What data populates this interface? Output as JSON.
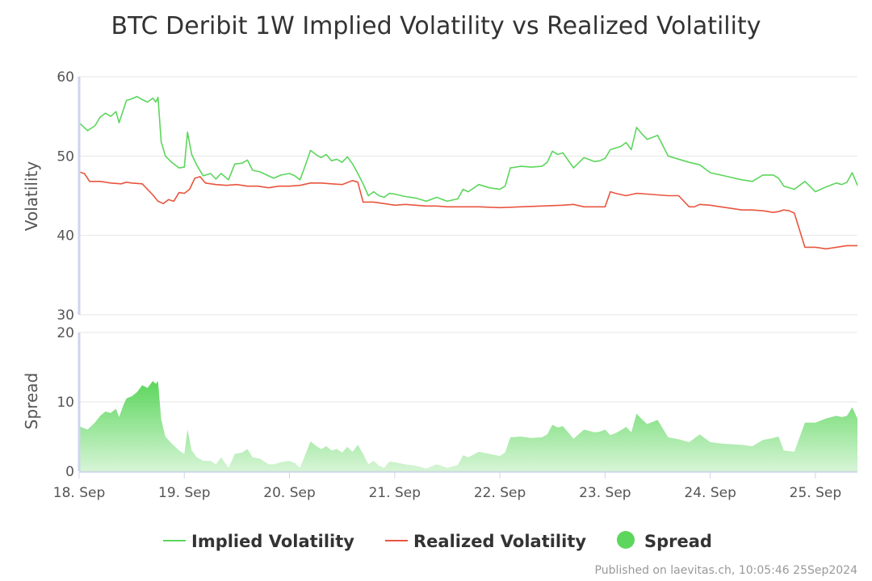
{
  "chart_data": {
    "type": "line",
    "title": "BTC Deribit 1W Implied Volatility vs Realized Volatility",
    "x_unit": "days since 18. Sep",
    "x_ticks": [
      "18. Sep",
      "19. Sep",
      "20. Sep",
      "21. Sep",
      "22. Sep",
      "23. Sep",
      "24. Sep",
      "25. Sep"
    ],
    "x_range": [
      0,
      7.4
    ],
    "panels": [
      {
        "id": "volatility",
        "ylabel": "Volatility",
        "ylim": [
          30,
          60
        ],
        "yticks": [
          30,
          40,
          50,
          60
        ]
      },
      {
        "id": "spread",
        "ylabel": "Spread",
        "ylim": [
          0,
          20
        ],
        "yticks": [
          0,
          10,
          20
        ]
      }
    ],
    "series": [
      {
        "name": "Implied Volatility",
        "panel": "volatility",
        "color": "#5cd65c",
        "x": [
          0,
          0.08,
          0.15,
          0.2,
          0.25,
          0.3,
          0.35,
          0.38,
          0.42,
          0.45,
          0.5,
          0.55,
          0.6,
          0.65,
          0.7,
          0.73,
          0.75,
          0.78,
          0.82,
          0.88,
          0.95,
          1.0,
          1.03,
          1.07,
          1.12,
          1.18,
          1.25,
          1.3,
          1.35,
          1.42,
          1.48,
          1.55,
          1.6,
          1.65,
          1.72,
          1.8,
          1.85,
          1.92,
          2.0,
          2.05,
          2.1,
          2.15,
          2.2,
          2.25,
          2.3,
          2.35,
          2.4,
          2.45,
          2.5,
          2.55,
          2.6,
          2.65,
          2.7,
          2.75,
          2.8,
          2.85,
          2.9,
          2.95,
          3.0,
          3.1,
          3.2,
          3.3,
          3.4,
          3.5,
          3.6,
          3.65,
          3.7,
          3.8,
          3.9,
          4.0,
          4.05,
          4.1,
          4.2,
          4.3,
          4.4,
          4.45,
          4.5,
          4.55,
          4.6,
          4.7,
          4.8,
          4.9,
          4.95,
          5.0,
          5.05,
          5.1,
          5.15,
          5.2,
          5.25,
          5.3,
          5.35,
          5.4,
          5.5,
          5.6,
          5.7,
          5.8,
          5.9,
          6.0,
          6.1,
          6.2,
          6.3,
          6.4,
          6.5,
          6.6,
          6.65,
          6.7,
          6.8,
          6.9,
          7.0,
          7.1,
          7.2,
          7.25,
          7.3,
          7.35,
          7.4
        ],
        "values": [
          54.2,
          53.2,
          53.8,
          54.9,
          55.4,
          55.0,
          55.6,
          54.2,
          55.8,
          57.0,
          57.2,
          57.5,
          57.1,
          56.8,
          57.3,
          56.8,
          57.4,
          51.8,
          50.0,
          49.2,
          48.5,
          48.6,
          53.0,
          50.2,
          48.8,
          47.5,
          47.8,
          47.1,
          47.8,
          47.0,
          49.0,
          49.1,
          49.5,
          48.2,
          48.0,
          47.5,
          47.2,
          47.6,
          47.8,
          47.5,
          47.0,
          48.8,
          50.7,
          50.2,
          49.8,
          50.2,
          49.4,
          49.6,
          49.2,
          49.9,
          49.0,
          47.8,
          46.5,
          45.0,
          45.5,
          45.0,
          44.8,
          45.3,
          45.2,
          44.9,
          44.7,
          44.3,
          44.8,
          44.3,
          44.6,
          45.8,
          45.5,
          46.4,
          46.0,
          45.8,
          46.2,
          48.5,
          48.7,
          48.6,
          48.7,
          49.2,
          50.6,
          50.2,
          50.4,
          48.5,
          49.8,
          49.3,
          49.4,
          49.7,
          50.8,
          51.0,
          51.2,
          51.7,
          50.8,
          53.6,
          52.8,
          52.1,
          52.6,
          50.0,
          49.6,
          49.2,
          48.9,
          47.9,
          47.6,
          47.3,
          47.0,
          46.8,
          47.6,
          47.6,
          47.2,
          46.2,
          45.8,
          46.8,
          45.5,
          46.1,
          46.6,
          46.4,
          46.7,
          47.9,
          46.3
        ],
        "spread_values": [
          6.5,
          6.0,
          7.0,
          8.0,
          8.6,
          8.4,
          9.0,
          7.8,
          9.5,
          10.5,
          10.8,
          11.4,
          12.4,
          12.0,
          13.0,
          12.6,
          13.0,
          7.5,
          5.0,
          4.0,
          3.0,
          2.5,
          6.0,
          3.0,
          2.0,
          1.5,
          1.5,
          1.0,
          2.0,
          0.5,
          2.5,
          2.7,
          3.2,
          2.0,
          1.8,
          1.0,
          1.0,
          1.3,
          1.5,
          1.2,
          0.5,
          2.4,
          4.3,
          3.7,
          3.2,
          3.6,
          3.0,
          3.2,
          2.7,
          3.5,
          2.8,
          3.8,
          2.5,
          1.0,
          1.5,
          0.8,
          0.5,
          1.4,
          1.3,
          1.0,
          0.8,
          0.4,
          1.0,
          0.5,
          0.9,
          2.3,
          2.0,
          2.8,
          2.5,
          2.2,
          2.7,
          4.9,
          5.0,
          4.8,
          4.9,
          5.3,
          6.7,
          6.3,
          6.5,
          4.7,
          6.0,
          5.6,
          5.7,
          6.0,
          5.2,
          5.5,
          5.9,
          6.4,
          5.6,
          8.3,
          7.5,
          6.8,
          7.4,
          4.9,
          4.6,
          4.2,
          5.3,
          4.2,
          4.0,
          3.9,
          3.8,
          3.6,
          4.5,
          4.8,
          5.0,
          3.0,
          2.8,
          7.0,
          7.0,
          7.6,
          8.0,
          7.8,
          8.0,
          9.2,
          7.6
        ],
        "spread_color": "#5cd65c"
      },
      {
        "name": "Realized Volatility",
        "panel": "volatility",
        "color": "#e8553f",
        "x": [
          0,
          0.05,
          0.1,
          0.15,
          0.2,
          0.3,
          0.4,
          0.45,
          0.5,
          0.6,
          0.7,
          0.75,
          0.8,
          0.85,
          0.9,
          0.95,
          1.0,
          1.05,
          1.1,
          1.15,
          1.2,
          1.3,
          1.4,
          1.5,
          1.6,
          1.7,
          1.8,
          1.9,
          2.0,
          2.1,
          2.2,
          2.3,
          2.4,
          2.5,
          2.6,
          2.65,
          2.7,
          2.8,
          2.9,
          3.0,
          3.1,
          3.2,
          3.3,
          3.4,
          3.5,
          3.6,
          3.8,
          4.0,
          4.2,
          4.4,
          4.6,
          4.7,
          4.8,
          4.9,
          4.95,
          5.0,
          5.05,
          5.1,
          5.2,
          5.3,
          5.4,
          5.5,
          5.6,
          5.7,
          5.8,
          5.85,
          5.9,
          6.0,
          6.1,
          6.2,
          6.3,
          6.4,
          6.5,
          6.6,
          6.65,
          6.7,
          6.75,
          6.8,
          6.9,
          7.0,
          7.1,
          7.2,
          7.3,
          7.4
        ],
        "values": [
          48.0,
          47.8,
          46.8,
          46.8,
          46.8,
          46.6,
          46.5,
          46.7,
          46.6,
          46.5,
          45.1,
          44.3,
          44.0,
          44.5,
          44.3,
          45.4,
          45.3,
          45.8,
          47.2,
          47.4,
          46.6,
          46.4,
          46.3,
          46.4,
          46.2,
          46.2,
          46.0,
          46.2,
          46.2,
          46.3,
          46.6,
          46.6,
          46.5,
          46.4,
          46.9,
          46.7,
          44.2,
          44.2,
          44.0,
          43.8,
          43.9,
          43.8,
          43.7,
          43.7,
          43.6,
          43.6,
          43.6,
          43.5,
          43.6,
          43.7,
          43.8,
          43.9,
          43.6,
          43.6,
          43.6,
          43.6,
          45.5,
          45.3,
          45.0,
          45.3,
          45.2,
          45.1,
          45.0,
          45.0,
          43.6,
          43.6,
          43.9,
          43.8,
          43.6,
          43.4,
          43.2,
          43.2,
          43.1,
          42.9,
          43.0,
          43.2,
          43.1,
          42.8,
          38.5,
          38.5,
          38.3,
          38.5,
          38.7,
          38.7
        ]
      }
    ],
    "legend": {
      "placement": "bottom-center",
      "items": [
        "Implied Volatility",
        "Realized Volatility",
        "Spread"
      ]
    },
    "grid": true
  },
  "credits": "Published on laevitas.ch, 10:05:46 25Sep2024"
}
